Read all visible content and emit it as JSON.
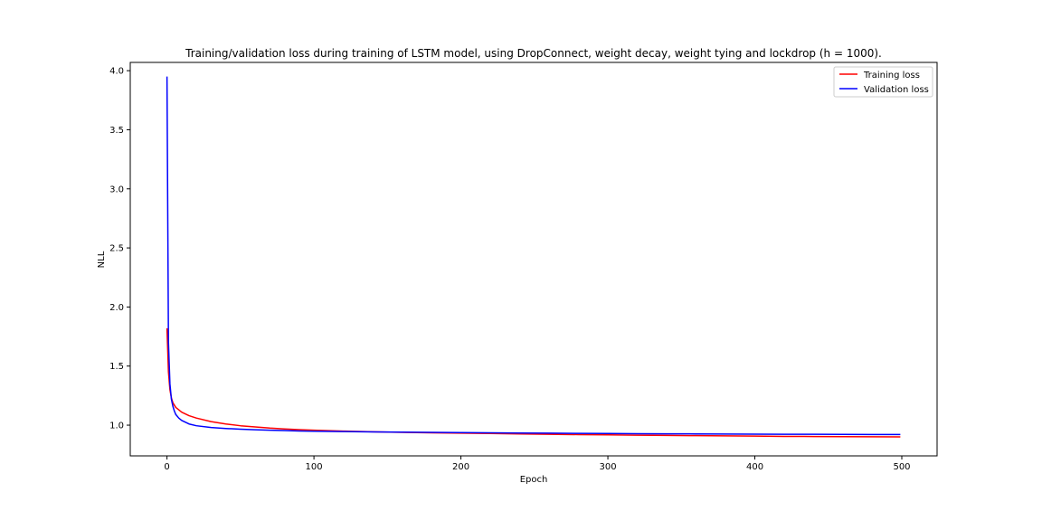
{
  "chart_data": {
    "type": "line",
    "title": "Training/validation loss during training of LSTM model, using DropConnect, weight decay, weight tying and lockdrop (h = 1000).",
    "xlabel": "Epoch",
    "ylabel": "NLL",
    "xlim": [
      -25,
      524
    ],
    "ylim": [
      0.74,
      4.07
    ],
    "x_ticks": [
      0,
      100,
      200,
      300,
      400,
      500
    ],
    "y_ticks": [
      1.0,
      1.5,
      2.0,
      2.5,
      3.0,
      3.5,
      4.0
    ],
    "grid": false,
    "legend": "top-right",
    "series": [
      {
        "name": "Training loss",
        "color": "#ff0000",
        "x": [
          0,
          1,
          2,
          3,
          4,
          5,
          6,
          8,
          10,
          15,
          20,
          30,
          40,
          50,
          60,
          70,
          80,
          90,
          100,
          120,
          140,
          160,
          180,
          200,
          220,
          240,
          260,
          280,
          300,
          320,
          340,
          360,
          380,
          400,
          420,
          440,
          460,
          480,
          499
        ],
        "y": [
          1.82,
          1.45,
          1.3,
          1.23,
          1.19,
          1.17,
          1.15,
          1.13,
          1.11,
          1.08,
          1.06,
          1.03,
          1.01,
          0.995,
          0.985,
          0.975,
          0.968,
          0.962,
          0.957,
          0.95,
          0.944,
          0.939,
          0.935,
          0.932,
          0.929,
          0.926,
          0.923,
          0.92,
          0.918,
          0.915,
          0.913,
          0.911,
          0.909,
          0.907,
          0.905,
          0.904,
          0.903,
          0.902,
          0.901
        ]
      },
      {
        "name": "Validation loss",
        "color": "#0000ff",
        "x": [
          0,
          1,
          2,
          3,
          4,
          5,
          6,
          8,
          10,
          15,
          20,
          30,
          40,
          50,
          60,
          70,
          80,
          90,
          100,
          120,
          140,
          160,
          180,
          200,
          220,
          240,
          260,
          280,
          300,
          320,
          340,
          360,
          380,
          400,
          420,
          440,
          460,
          480,
          499
        ],
        "y": [
          3.95,
          1.7,
          1.35,
          1.22,
          1.16,
          1.12,
          1.09,
          1.06,
          1.04,
          1.01,
          0.995,
          0.98,
          0.972,
          0.966,
          0.961,
          0.957,
          0.954,
          0.951,
          0.949,
          0.946,
          0.943,
          0.941,
          0.939,
          0.937,
          0.935,
          0.933,
          0.932,
          0.93,
          0.929,
          0.928,
          0.927,
          0.926,
          0.925,
          0.924,
          0.923,
          0.923,
          0.922,
          0.921,
          0.921
        ]
      }
    ]
  }
}
